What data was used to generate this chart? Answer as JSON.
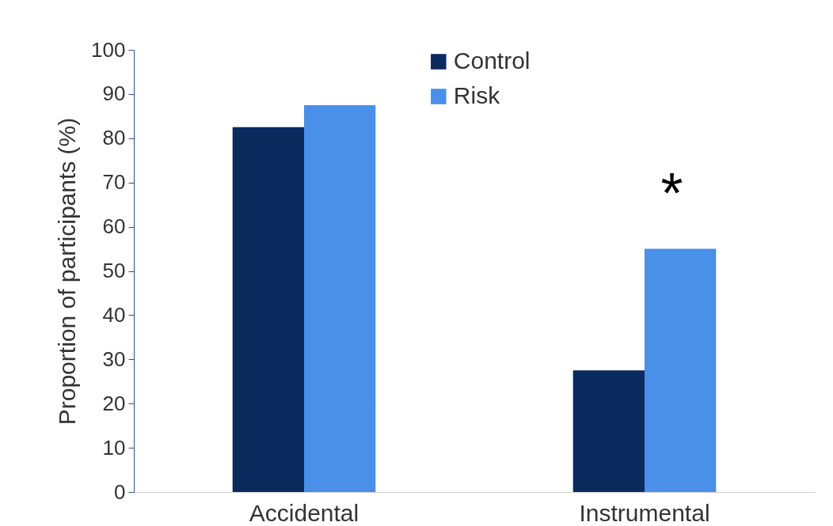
{
  "chart_data": {
    "type": "bar",
    "ylabel": "Proportion of participants (%)",
    "categories": [
      "Accidental",
      "Instrumental"
    ],
    "series": [
      {
        "name": "Control",
        "color": "#0a2a5e",
        "values": [
          82.5,
          27.5
        ]
      },
      {
        "name": "Risk",
        "color": "#4a8fe8",
        "values": [
          87.5,
          55
        ]
      }
    ],
    "ylim": [
      0,
      100
    ],
    "yticks": [
      0,
      10,
      20,
      30,
      40,
      50,
      60,
      70,
      80,
      90,
      100
    ],
    "grid": false,
    "legend": "top",
    "annotations": [
      "*"
    ]
  }
}
